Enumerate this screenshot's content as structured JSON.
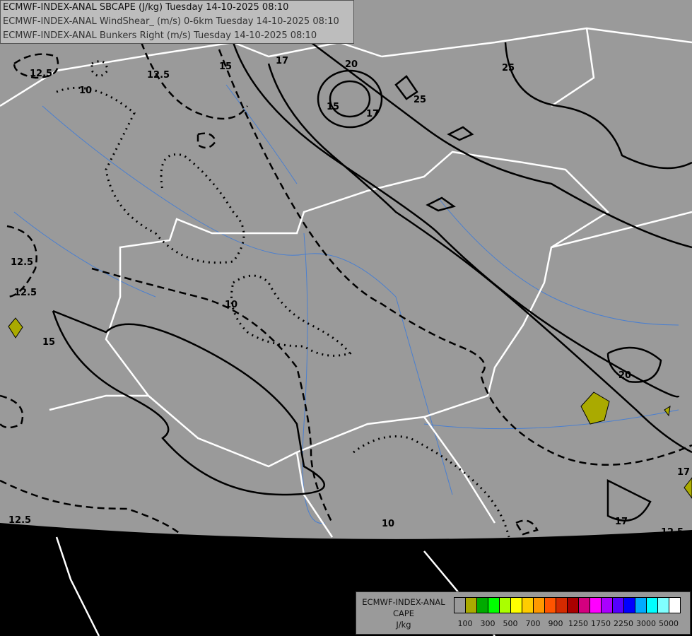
{
  "titles": [
    "ECMWF-INDEX-ANAL SBCAPE (J/kg) Tuesday 14-10-2025 08:10",
    "ECMWF-INDEX-ANAL WindShear_ (m/s) 0-6km Tuesday 14-10-2025 08:10",
    "ECMWF-INDEX-ANAL Bunkers Right (m/s) Tuesday 14-10-2025 08:10"
  ],
  "legend": {
    "title_lines": [
      "ECMWF-INDEX-ANAL",
      "CAPE",
      "J/kg"
    ],
    "colors": [
      "#9a9a9a",
      "#aaaa00",
      "#00aa00",
      "#00ff00",
      "#aaff00",
      "#ffff00",
      "#ffcc00",
      "#ff9900",
      "#ff5500",
      "#d42a00",
      "#aa0000",
      "#d4007f",
      "#ff00ff",
      "#aa00ff",
      "#5500ff",
      "#0000ff",
      "#00aaff",
      "#00ffff",
      "#80ffff",
      "#ffffff"
    ],
    "tick_labels": [
      "100",
      "300",
      "500",
      "700",
      "900",
      "1250",
      "1750",
      "2250",
      "3000",
      "5000"
    ]
  },
  "map": {
    "background": "#9a9a9a",
    "outside": "#000000",
    "border_color": "#ffffff",
    "river_color": "#4a7fd0",
    "cape_fill": "#aaaa00",
    "contour_labels": {
      "shear": [
        "15",
        "15",
        "17",
        "20",
        "15",
        "17",
        "25",
        "25",
        "20",
        "17",
        "17"
      ],
      "bunkers": [
        "12.5",
        "12.5",
        "12.5",
        "12.5",
        "12.5",
        "12.5",
        "10",
        "10",
        "10"
      ]
    }
  }
}
